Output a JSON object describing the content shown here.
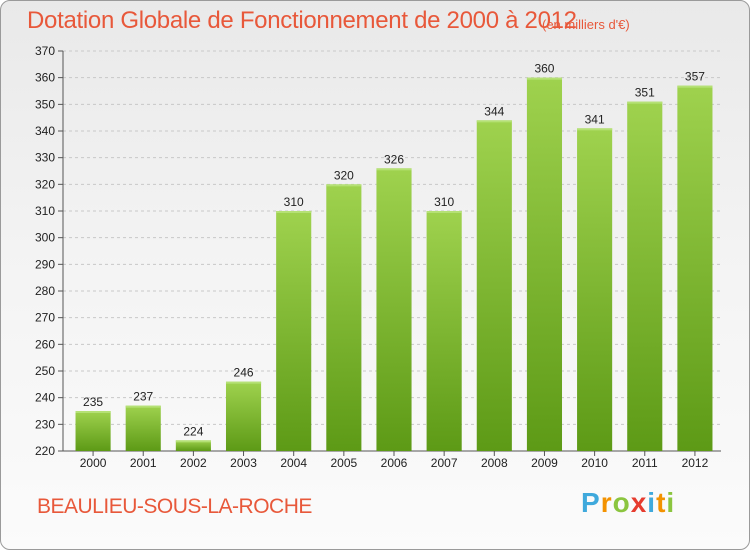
{
  "chart_data": {
    "type": "bar",
    "title": "Dotation Globale de Fonctionnement de 2000 à 2012",
    "unit_note": "(en milliers d'€)",
    "categories": [
      "2000",
      "2001",
      "2002",
      "2003",
      "2004",
      "2005",
      "2006",
      "2007",
      "2008",
      "2009",
      "2010",
      "2011",
      "2012"
    ],
    "values": [
      235,
      237,
      224,
      246,
      310,
      320,
      326,
      310,
      344,
      360,
      341,
      351,
      357
    ],
    "ylim": [
      220,
      370
    ],
    "yticks": [
      220,
      230,
      240,
      250,
      260,
      270,
      280,
      290,
      300,
      310,
      320,
      330,
      340,
      350,
      360,
      370
    ],
    "grid": true,
    "bar_color": "#7cbf2a",
    "title_color": "#e8583a"
  },
  "footer": {
    "commune": "BEAULIEU-SOUS-LA-ROCHE",
    "logo_letters": [
      "P",
      "r",
      "o",
      "x",
      "i",
      "t",
      "i"
    ],
    "logo_colors": [
      "#3fa9dc",
      "#f39200",
      "#8bc53f",
      "#e63c2f",
      "#3fa9dc",
      "#f39200",
      "#8bc53f"
    ]
  }
}
